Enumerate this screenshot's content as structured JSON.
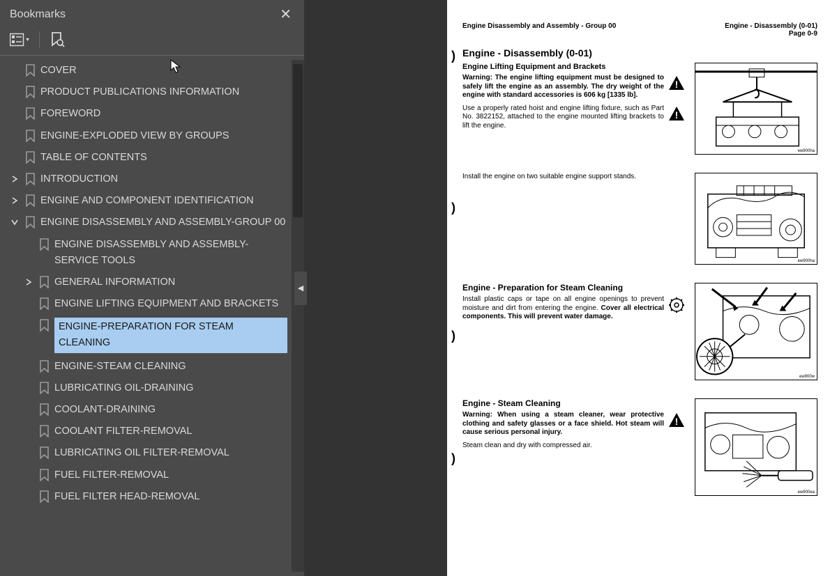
{
  "colors": {
    "sidebar_bg": "#4a4a4a",
    "sidebar_text": "#d8d8d8",
    "selected_bg": "#a8cdf0",
    "selected_text": "#1a1a1a",
    "gap_bg": "#333333",
    "doc_bg": "#ffffff",
    "doc_text": "#000000"
  },
  "sidebar": {
    "title": "Bookmarks",
    "items": [
      {
        "depth": 0,
        "chev": "",
        "label": "COVER",
        "underline": true
      },
      {
        "depth": 0,
        "chev": "",
        "label": "PRODUCT PUBLICATIONS INFORMATION"
      },
      {
        "depth": 0,
        "chev": "",
        "label": "FOREWORD"
      },
      {
        "depth": 0,
        "chev": "",
        "label": "ENGINE-EXPLODED VIEW BY GROUPS"
      },
      {
        "depth": 0,
        "chev": "",
        "label": "TABLE OF CONTENTS"
      },
      {
        "depth": 0,
        "chev": "right",
        "label": "INTRODUCTION"
      },
      {
        "depth": 0,
        "chev": "right",
        "label": "ENGINE AND COMPONENT IDENTIFICATION"
      },
      {
        "depth": 0,
        "chev": "down",
        "label": "ENGINE DISASSEMBLY AND ASSEMBLY-GROUP 00"
      },
      {
        "depth": 1,
        "chev": "",
        "label": "ENGINE DISASSEMBLY AND ASSEMBLY-SERVICE TOOLS"
      },
      {
        "depth": 1,
        "chev": "right",
        "label": "GENERAL INFORMATION"
      },
      {
        "depth": 1,
        "chev": "",
        "label": "ENGINE LIFTING EQUIPMENT AND BRACKETS"
      },
      {
        "depth": 1,
        "chev": "",
        "label": "ENGINE-PREPARATION FOR STEAM CLEANING",
        "selected": true
      },
      {
        "depth": 1,
        "chev": "",
        "label": "ENGINE-STEAM CLEANING"
      },
      {
        "depth": 1,
        "chev": "",
        "label": "LUBRICATING OIL-DRAINING"
      },
      {
        "depth": 1,
        "chev": "",
        "label": "COOLANT-DRAINING"
      },
      {
        "depth": 1,
        "chev": "",
        "label": "COOLANT FILTER-REMOVAL"
      },
      {
        "depth": 1,
        "chev": "",
        "label": "LUBRICATING OIL FILTER-REMOVAL"
      },
      {
        "depth": 1,
        "chev": "",
        "label": "FUEL FILTER-REMOVAL"
      },
      {
        "depth": 1,
        "chev": "",
        "label": "FUEL FILTER HEAD-REMOVAL"
      }
    ]
  },
  "doc": {
    "header_left": "Engine Disassembly and Assembly - Group 00",
    "header_right_1": "Engine - Disassembly (0-01)",
    "header_right_2": "Page 0-9",
    "title": "Engine - Disassembly (0-01)",
    "sections": [
      {
        "heading": "Engine Lifting Equipment and Brackets",
        "paras": [
          {
            "warn": true,
            "text": "Warning: The engine lifting equipment must be designed to safely lift the engine as an assembly. The dry weight of the engine with standard accessories is 606 kg [1335 lb]."
          },
          {
            "warn": true,
            "text": "Use a properly rated hoist and engine lifting fixture, such as Part No. 3822152, attached to the engine mounted lifting brackets to lift the engine."
          }
        ],
        "fig_height": 132,
        "fig_label": "ew900ha",
        "fig_kind": "hoist"
      },
      {
        "heading": "",
        "paras": [
          {
            "text": "Install the engine on two suitable engine support stands."
          }
        ],
        "fig_height": 132,
        "fig_label": "ew900ha",
        "fig_kind": "engine"
      },
      {
        "heading": "Engine - Preparation for Steam Cleaning",
        "paras": [
          {
            "icononly": true,
            "text": "Install plastic caps or tape on all engine openings to prevent moisture and dirt from entering the engine. Cover all electrical components. This will prevent water damage."
          }
        ],
        "fig_height": 140,
        "fig_label": "ew900w",
        "fig_kind": "engine_zoom"
      },
      {
        "heading": "Engine - Steam Cleaning",
        "paras": [
          {
            "warn": true,
            "text": "Warning: When using a steam cleaner, wear protective clothing and safety glasses or a face shield. Hot steam will cause serious personal injury."
          },
          {
            "text": "Steam clean and dry with compressed air."
          }
        ],
        "fig_height": 140,
        "fig_label": "ew900ea",
        "fig_kind": "engine_spray"
      }
    ]
  }
}
